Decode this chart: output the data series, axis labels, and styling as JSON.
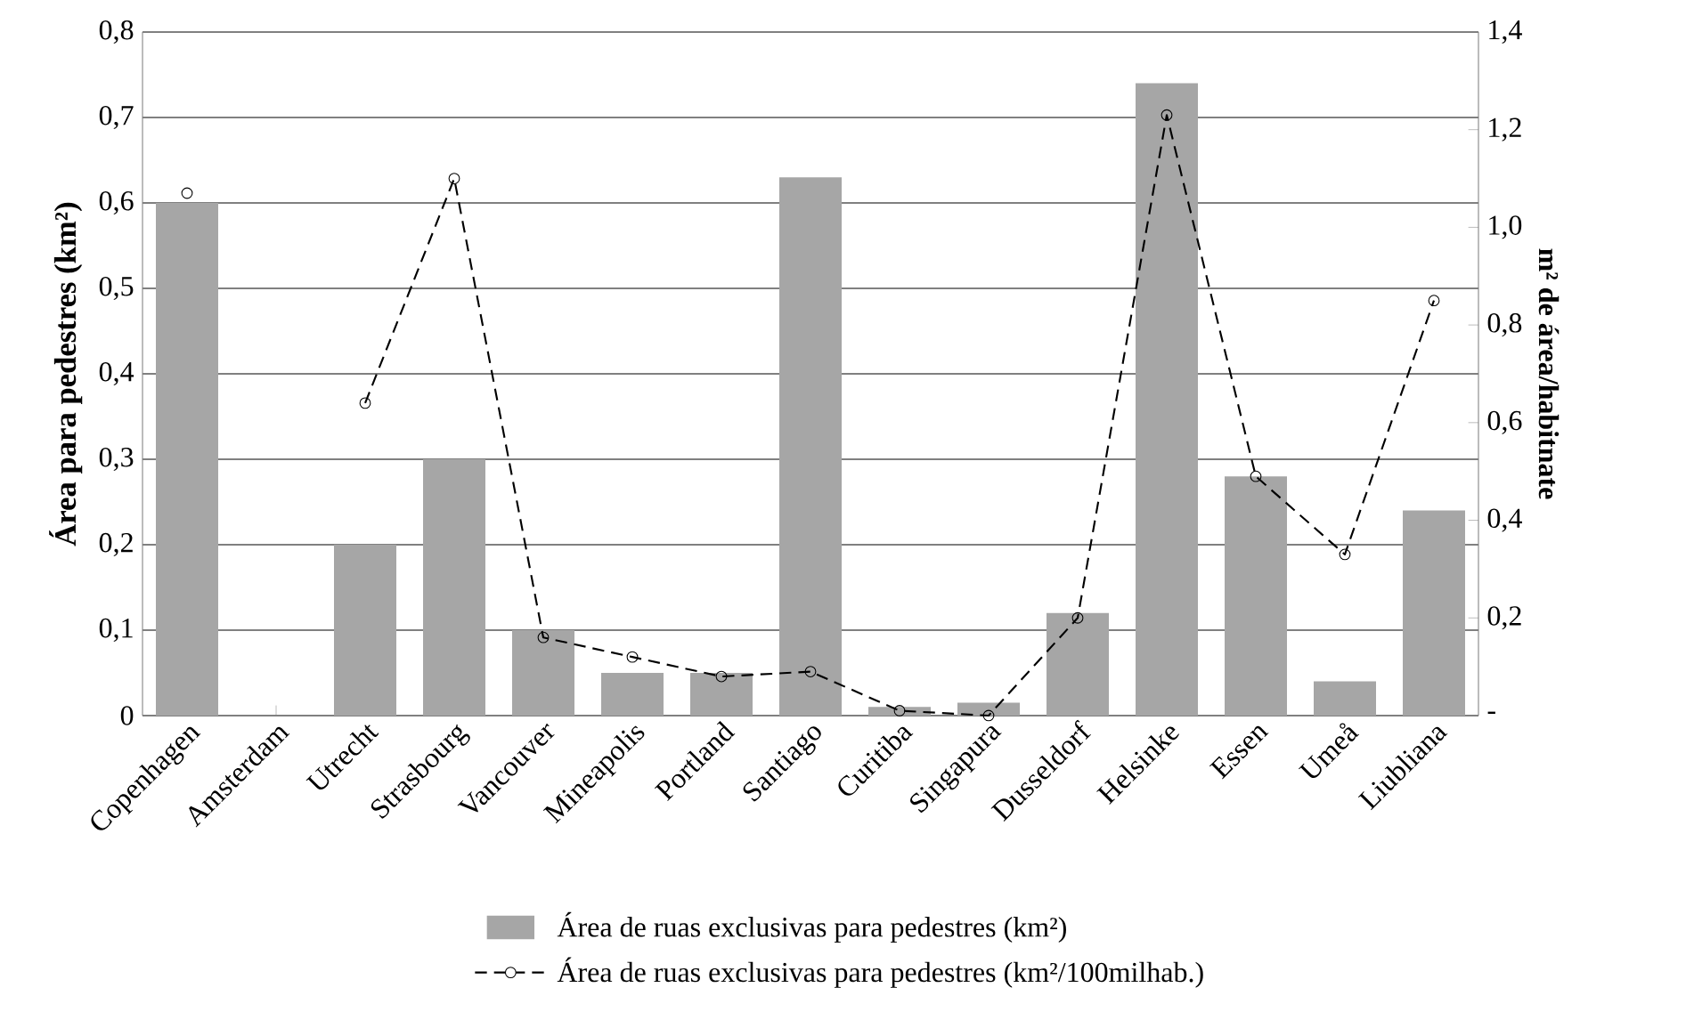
{
  "chart_data": {
    "type": "bar",
    "ylabel": "Área para pedestres (km²)",
    "y2label": "m² de área/habitnate",
    "categories": [
      "Copenhagen",
      "Amsterdam",
      "Utrecht",
      "Strasbourg",
      "Vancouver",
      "Mineapolis",
      "Portland",
      "Santiago",
      "Curitiba",
      "Singapura",
      "Dusseldorf",
      "Helsinke",
      "Essen",
      "Umeå",
      "Liubliana"
    ],
    "series": [
      {
        "name": "Área de ruas exclusivas para pedestres (km²)",
        "color": "#a6a6a6",
        "values": [
          0.6,
          null,
          0.2,
          0.3,
          0.1,
          0.05,
          0.05,
          0.63,
          0.01,
          0.015,
          0.12,
          0.74,
          0.28,
          0.04,
          0.24
        ]
      },
      {
        "name": "Área de ruas exclusivas para pedestres (km²/100milhab.)",
        "type": "line",
        "axis": "y2",
        "color": "#000000",
        "marker": "circle",
        "line_style": "dashed",
        "values": [
          1.07,
          null,
          0.64,
          1.1,
          0.16,
          0.12,
          0.08,
          0.09,
          0.01,
          0.0,
          0.2,
          1.23,
          0.49,
          0.33,
          0.85
        ]
      }
    ],
    "ylim": [
      0,
      0.8
    ],
    "yticks": [
      0,
      {
        "value": 0.1,
        "label": "0,1"
      },
      {
        "value": 0.2,
        "label": "0,2"
      },
      {
        "value": 0.3,
        "label": "0,3"
      },
      {
        "value": 0.4,
        "label": "0,4"
      },
      {
        "value": 0.5,
        "label": "0,5"
      },
      {
        "value": 0.6,
        "label": "0,6"
      },
      {
        "value": 0.7,
        "label": "0,7"
      },
      {
        "value": 0.8,
        "label": "0,8"
      }
    ],
    "y2lim": [
      0,
      1.4
    ],
    "y2ticks": [
      {
        "value": 0,
        "label": "-"
      },
      {
        "value": 0.2,
        "label": "0,2"
      },
      {
        "value": 0.4,
        "label": "0,4"
      },
      {
        "value": 0.6,
        "label": "0,6"
      },
      {
        "value": 0.8,
        "label": "0,8"
      },
      {
        "value": 1.0,
        "label": "1,0"
      },
      {
        "value": 1.2,
        "label": "1,2"
      },
      {
        "value": 1.4,
        "label": "1,4"
      }
    ],
    "grid": "y",
    "legend": "bottom"
  }
}
